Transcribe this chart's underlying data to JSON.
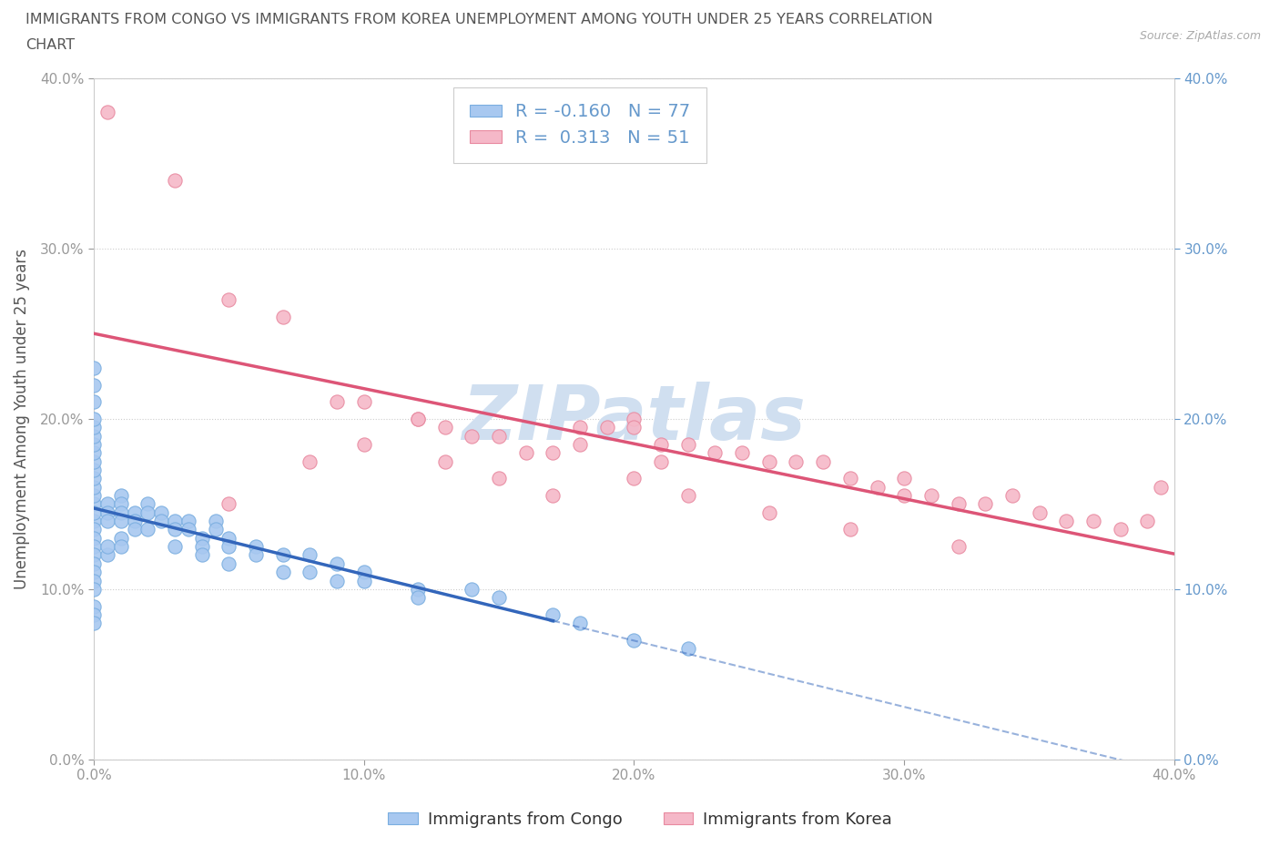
{
  "title_line1": "IMMIGRANTS FROM CONGO VS IMMIGRANTS FROM KOREA UNEMPLOYMENT AMONG YOUTH UNDER 25 YEARS CORRELATION",
  "title_line2": "CHART",
  "source": "Source: ZipAtlas.com",
  "ylabel": "Unemployment Among Youth under 25 years",
  "xlim": [
    0.0,
    0.4
  ],
  "ylim": [
    0.0,
    0.4
  ],
  "xticks": [
    0.0,
    0.1,
    0.2,
    0.3,
    0.4
  ],
  "yticks": [
    0.0,
    0.1,
    0.2,
    0.3,
    0.4
  ],
  "congo_R": -0.16,
  "congo_N": 77,
  "korea_R": 0.313,
  "korea_N": 51,
  "congo_color": "#a8c8f0",
  "korea_color": "#f5b8c8",
  "congo_edge_color": "#7aaee0",
  "korea_edge_color": "#e88aa0",
  "trend_congo_color": "#3366bb",
  "trend_korea_color": "#dd5577",
  "watermark_color": "#d0dff0",
  "legend_label_congo": "Immigrants from Congo",
  "legend_label_korea": "Immigrants from Korea",
  "background_color": "#ffffff",
  "grid_color": "#cccccc",
  "title_color": "#555555",
  "axis_label_color": "#555555",
  "tick_label_color_left": "#999999",
  "tick_label_color_right": "#6699cc",
  "r_color": "#6699cc",
  "congo_points_x": [
    0.0,
    0.0,
    0.0,
    0.0,
    0.0,
    0.0,
    0.0,
    0.0,
    0.0,
    0.0,
    0.0,
    0.0,
    0.0,
    0.0,
    0.0,
    0.0,
    0.0,
    0.0,
    0.0,
    0.0,
    0.0,
    0.0,
    0.0,
    0.0,
    0.0,
    0.0,
    0.0,
    0.005,
    0.005,
    0.005,
    0.005,
    0.005,
    0.01,
    0.01,
    0.01,
    0.01,
    0.01,
    0.01,
    0.015,
    0.015,
    0.015,
    0.02,
    0.02,
    0.02,
    0.025,
    0.025,
    0.03,
    0.03,
    0.03,
    0.035,
    0.035,
    0.04,
    0.04,
    0.04,
    0.045,
    0.045,
    0.05,
    0.05,
    0.05,
    0.06,
    0.06,
    0.07,
    0.07,
    0.08,
    0.08,
    0.09,
    0.09,
    0.1,
    0.1,
    0.12,
    0.12,
    0.14,
    0.15,
    0.17,
    0.18,
    0.2,
    0.22
  ],
  "congo_points_y": [
    0.15,
    0.155,
    0.16,
    0.165,
    0.14,
    0.145,
    0.135,
    0.13,
    0.125,
    0.12,
    0.115,
    0.11,
    0.105,
    0.1,
    0.09,
    0.085,
    0.08,
    0.17,
    0.175,
    0.18,
    0.185,
    0.19,
    0.21,
    0.22,
    0.23,
    0.195,
    0.2,
    0.15,
    0.145,
    0.14,
    0.12,
    0.125,
    0.155,
    0.15,
    0.145,
    0.14,
    0.13,
    0.125,
    0.145,
    0.14,
    0.135,
    0.15,
    0.145,
    0.135,
    0.145,
    0.14,
    0.14,
    0.135,
    0.125,
    0.14,
    0.135,
    0.13,
    0.125,
    0.12,
    0.14,
    0.135,
    0.13,
    0.125,
    0.115,
    0.125,
    0.12,
    0.12,
    0.11,
    0.12,
    0.11,
    0.115,
    0.105,
    0.11,
    0.105,
    0.1,
    0.095,
    0.1,
    0.095,
    0.085,
    0.08,
    0.07,
    0.065
  ],
  "korea_points_x": [
    0.005,
    0.03,
    0.05,
    0.07,
    0.09,
    0.1,
    0.12,
    0.12,
    0.13,
    0.14,
    0.15,
    0.16,
    0.17,
    0.18,
    0.18,
    0.19,
    0.2,
    0.2,
    0.21,
    0.21,
    0.22,
    0.23,
    0.24,
    0.25,
    0.26,
    0.27,
    0.28,
    0.29,
    0.3,
    0.3,
    0.31,
    0.32,
    0.33,
    0.34,
    0.35,
    0.36,
    0.37,
    0.38,
    0.39,
    0.05,
    0.08,
    0.1,
    0.13,
    0.15,
    0.17,
    0.2,
    0.22,
    0.25,
    0.28,
    0.32,
    0.395
  ],
  "korea_points_y": [
    0.38,
    0.34,
    0.27,
    0.26,
    0.21,
    0.21,
    0.2,
    0.2,
    0.195,
    0.19,
    0.19,
    0.18,
    0.18,
    0.185,
    0.195,
    0.195,
    0.2,
    0.195,
    0.185,
    0.175,
    0.185,
    0.18,
    0.18,
    0.175,
    0.175,
    0.175,
    0.165,
    0.16,
    0.155,
    0.165,
    0.155,
    0.15,
    0.15,
    0.155,
    0.145,
    0.14,
    0.14,
    0.135,
    0.14,
    0.15,
    0.175,
    0.185,
    0.175,
    0.165,
    0.155,
    0.165,
    0.155,
    0.145,
    0.135,
    0.125,
    0.16
  ]
}
